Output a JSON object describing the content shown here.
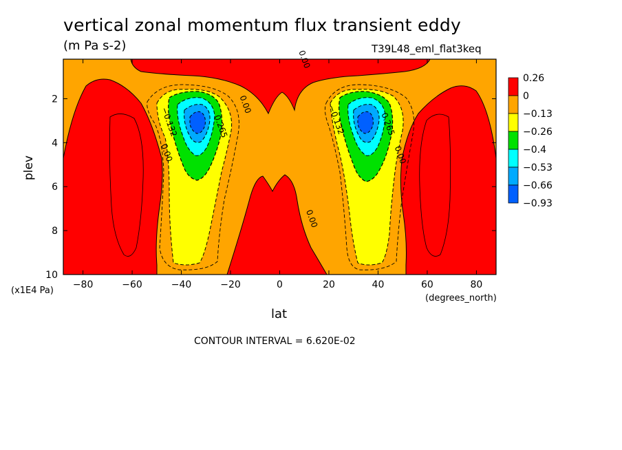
{
  "chart_data": {
    "type": "heatmap",
    "title": "vertical zonal momentum flux transient eddy",
    "units_label": "(m Pa s-2)",
    "run_id": "T39L48_eml_flat3keq",
    "xlabel": "lat",
    "x_units": "(degrees_north)",
    "ylabel": "plev",
    "y_units": "(x1E4 Pa)",
    "xlim": [
      -88,
      88
    ],
    "ylim": [
      10,
      0.2
    ],
    "x_ticks": [
      -80,
      -60,
      -40,
      -20,
      0,
      20,
      40,
      60,
      80
    ],
    "y_ticks": [
      2,
      4,
      6,
      8,
      10
    ],
    "contour_interval": "CONTOUR INTERVAL = 6.620E-02",
    "colorbar": {
      "levels": [
        "0.26",
        "0",
        "−0.13",
        "−0.26",
        "−0.4",
        "−0.53",
        "−0.66",
        "−0.93"
      ],
      "colors": [
        "#ff0000",
        "#ffa500",
        "#ffff00",
        "#00e100",
        "#00ffff",
        "#00aaff",
        "#0060ff"
      ]
    },
    "contour_labels": [
      {
        "text": "0.00",
        "lat": 9,
        "plev": 0.25
      },
      {
        "text": "0.00",
        "lat": -15,
        "plev": 2.3
      },
      {
        "text": "−0.132",
        "lat": -46,
        "plev": 3.1
      },
      {
        "text": "0.265",
        "lat": -25,
        "plev": 3.3
      },
      {
        "text": "0.00",
        "lat": -47,
        "plev": 4.5
      },
      {
        "text": "−0.132",
        "lat": 22,
        "plev": 3.0
      },
      {
        "text": "0.265",
        "lat": 43,
        "plev": 3.2
      },
      {
        "text": "0.00",
        "lat": 48,
        "plev": 4.6
      },
      {
        "text": "0.00",
        "lat": 12,
        "plev": 7.5
      }
    ],
    "features": [
      {
        "name": "negative-flux-core-sh",
        "center_lat": -33,
        "center_plev": 3.0,
        "min_value": -0.93
      },
      {
        "name": "negative-flux-core-nh",
        "center_lat": 33,
        "center_plev": 3.0,
        "min_value": -0.93
      }
    ]
  }
}
